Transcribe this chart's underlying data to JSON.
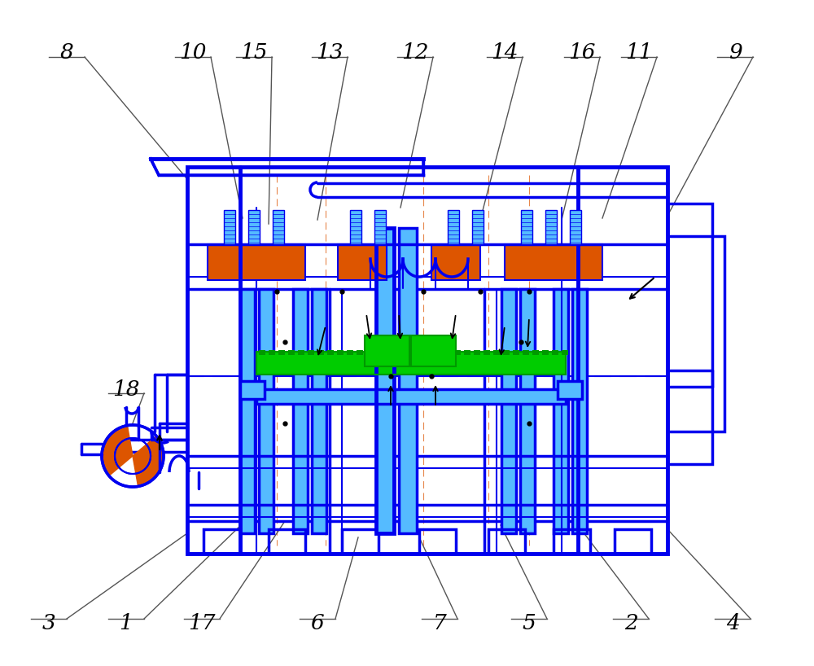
{
  "bg_color": "#ffffff",
  "blue": "#2200cc",
  "blue2": "#0000ee",
  "cyan": "#55bbff",
  "green": "#00cc00",
  "green2": "#009900",
  "orange": "#dd5500",
  "black": "#000000",
  "gray": "#777777",
  "darkblue": "#0000aa"
}
